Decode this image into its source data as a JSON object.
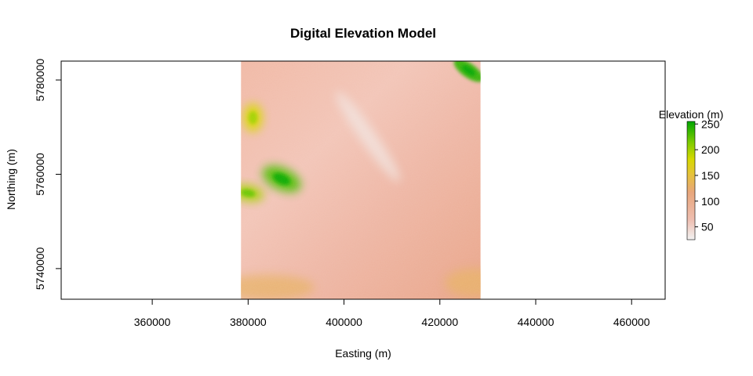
{
  "chart_data": {
    "type": "heatmap",
    "title": "Digital Elevation Model",
    "xlabel": "Easting (m)",
    "ylabel": "Northing (m)",
    "xlim": [
      341000,
      467000
    ],
    "ylim": [
      5733500,
      5784000
    ],
    "x_ticks": [
      360000,
      380000,
      400000,
      420000,
      440000,
      460000
    ],
    "x_tick_labels": [
      "360000",
      "380000",
      "400000",
      "420000",
      "440000",
      "460000"
    ],
    "y_ticks": [
      5740000,
      5760000,
      5780000
    ],
    "y_tick_labels": [
      "5740000",
      "5760000",
      "5780000"
    ],
    "raster_extent": {
      "xmin": 378500,
      "xmax": 428500,
      "ymin": 5733500,
      "ymax": 5784000
    },
    "legend": {
      "title": "Elevation (m)",
      "position": "right",
      "range": [
        25,
        255
      ],
      "ticks": [
        50,
        100,
        150,
        200,
        250
      ],
      "tick_labels": [
        "50",
        "100",
        "150",
        "200",
        "250"
      ],
      "colors": [
        "#f2f2f2",
        "#eebeb0",
        "#e8a67c",
        "#e6c23c",
        "#d6d800",
        "#7fcc00",
        "#00a600"
      ]
    },
    "features": [
      {
        "name": "ridge-west",
        "x": 387000,
        "y": 5759000,
        "elevation": 230
      },
      {
        "name": "hill-northwest",
        "x": 381000,
        "y": 5772000,
        "elevation": 180
      },
      {
        "name": "hill-west",
        "x": 380000,
        "y": 5756000,
        "elevation": 200
      },
      {
        "name": "hill-northeast",
        "x": 426000,
        "y": 5782000,
        "elevation": 240
      },
      {
        "name": "lowland-south",
        "x": 384000,
        "y": 5736000,
        "elevation": 130
      },
      {
        "name": "lowland-southeast",
        "x": 427000,
        "y": 5737000,
        "elevation": 130
      },
      {
        "name": "valley-central",
        "x": 405000,
        "y": 5768000,
        "elevation": 35
      }
    ]
  }
}
